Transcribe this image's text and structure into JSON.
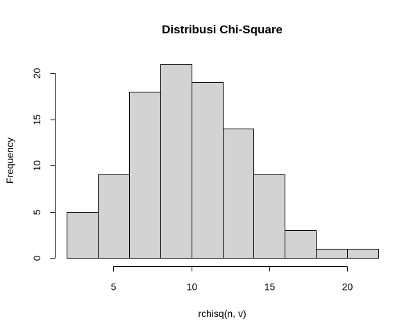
{
  "chart_data": {
    "type": "bar",
    "title": "Distribusi Chi-Square",
    "xlabel": "rchisq(n, v)",
    "ylabel": "Frequency",
    "bins": [
      {
        "from": 2,
        "to": 4,
        "value": 5
      },
      {
        "from": 4,
        "to": 6,
        "value": 9
      },
      {
        "from": 6,
        "to": 8,
        "value": 18
      },
      {
        "from": 8,
        "to": 10,
        "value": 21
      },
      {
        "from": 10,
        "to": 12,
        "value": 19
      },
      {
        "from": 12,
        "to": 14,
        "value": 14
      },
      {
        "from": 14,
        "to": 16,
        "value": 9
      },
      {
        "from": 16,
        "to": 18,
        "value": 3
      },
      {
        "from": 18,
        "to": 20,
        "value": 1
      },
      {
        "from": 20,
        "to": 22,
        "value": 1
      }
    ],
    "xticks": [
      5,
      10,
      15,
      20
    ],
    "yticks": [
      0,
      5,
      10,
      15,
      20
    ],
    "xlim": [
      2,
      22
    ],
    "ylim": [
      0,
      20
    ],
    "bar_color": "#d3d3d3",
    "grid": false,
    "legend": "none"
  }
}
